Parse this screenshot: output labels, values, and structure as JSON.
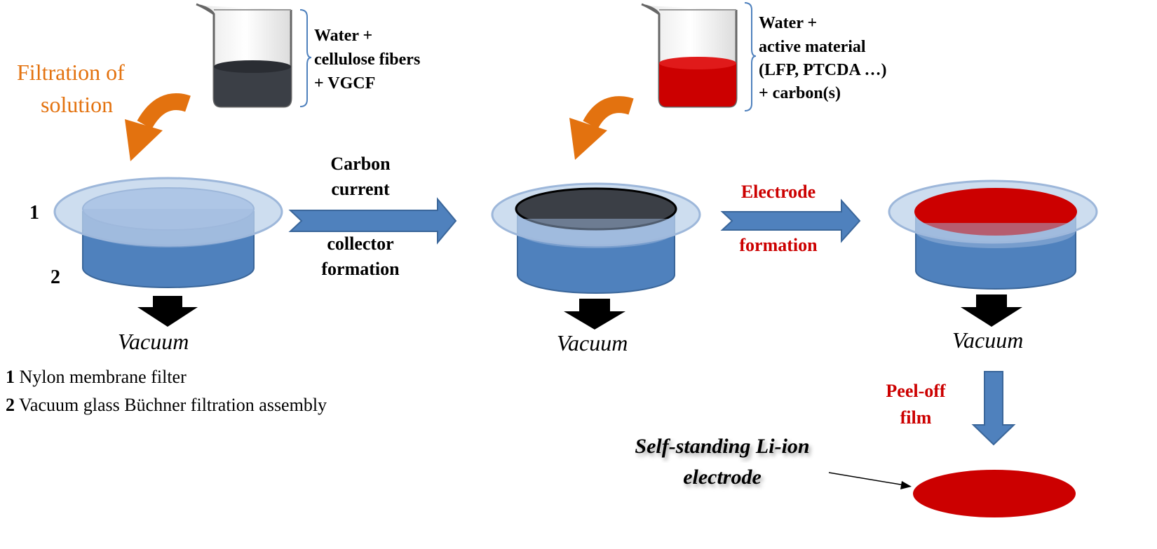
{
  "colors": {
    "orange": "#E3720F",
    "red": "#CC0000",
    "blue": "#4F81BD",
    "blue_light": "#BCD1EA",
    "dark": "#3B3F46",
    "black": "#000000"
  },
  "beaker1": {
    "liquid_color": "#3B3F46",
    "lines": [
      "Water +",
      "cellulose fibers",
      "+ VGCF"
    ]
  },
  "beaker2": {
    "liquid_color": "#CC0000",
    "lines": [
      "Water +",
      "active material",
      "(LFP, PTCDA …)",
      "+ carbon(s)"
    ]
  },
  "filtration_label": [
    "Filtration of",
    "solution"
  ],
  "marker1": "1",
  "marker2": "2",
  "arrow1_label": {
    "top": [
      "Carbon",
      "current"
    ],
    "bottom": [
      "collector",
      "formation"
    ]
  },
  "arrow2_label": {
    "top": "Electrode",
    "bottom": "formation"
  },
  "vacuum_label": "Vacuum",
  "legend": [
    {
      "num": "1",
      "text": " Nylon membrane filter"
    },
    {
      "num": "2",
      "text": " Vacuum glass Büchner filtration assembly"
    }
  ],
  "peel_label": [
    "Peel-off",
    "film"
  ],
  "electrode_label": [
    "Self-standing Li-ion",
    "electrode"
  ]
}
